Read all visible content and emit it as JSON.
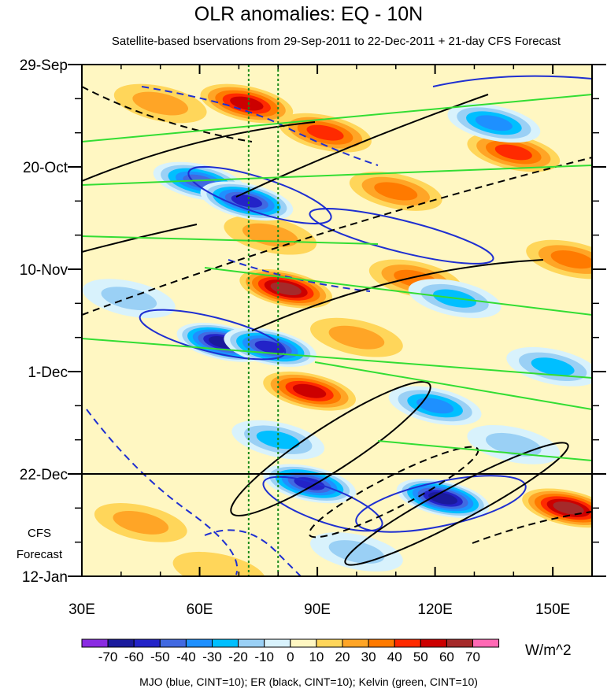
{
  "chart_data": {
    "type": "heatmap",
    "title": "OLR anomalies: EQ - 10N",
    "subtitle": "Satellite-based bservations from 29-Sep-2011 to 22-Dec-2011 + 21-day CFS Forecast",
    "x_axis": {
      "range": [
        30,
        160
      ],
      "ticks": [
        30,
        60,
        90,
        120,
        150
      ],
      "tick_labels": [
        "30E",
        "60E",
        "90E",
        "120E",
        "150E"
      ]
    },
    "y_axis": {
      "range_days": [
        0,
        105
      ],
      "ticks_days": [
        0,
        21,
        42,
        63,
        84,
        105
      ],
      "tick_labels": [
        "29-Sep",
        "20-Oct",
        "10-Nov",
        "1-Dec",
        "22-Dec",
        "12-Jan"
      ],
      "direction": "down"
    },
    "forecast_start_day": 84,
    "forecast_label": [
      "CFS",
      "Forecast"
    ],
    "reference_lons": [
      72.5,
      80
    ],
    "colorbar": {
      "levels": [
        -70,
        -60,
        -50,
        -40,
        -30,
        -20,
        -10,
        0,
        10,
        20,
        30,
        40,
        50,
        60,
        70
      ],
      "labels": [
        "-70",
        "-60",
        "-50",
        "-40",
        "-30",
        "-20",
        "-10",
        "0",
        "10",
        "20",
        "30",
        "40",
        "50",
        "60",
        "70"
      ],
      "colors": [
        "#8a2be2",
        "#1a1a9c",
        "#2323c8",
        "#4169e1",
        "#1e90ff",
        "#00bfff",
        "#9ad0f5",
        "#d8f2fc",
        "#fff7c2",
        "#ffd65a",
        "#ffa526",
        "#ff7a00",
        "#ff2a00",
        "#cc0000",
        "#a52a2a",
        "#ff69b4"
      ],
      "units": "W/m^2"
    },
    "anomalies": [
      {
        "lon": 72,
        "day": 8,
        "value": 55
      },
      {
        "lon": 92,
        "day": 14,
        "value": 40
      },
      {
        "lon": 140,
        "day": 18,
        "value": 40
      },
      {
        "lon": 110,
        "day": 26,
        "value": 30
      },
      {
        "lon": 78,
        "day": 35,
        "value": 20
      },
      {
        "lon": 82,
        "day": 46,
        "value": 60
      },
      {
        "lon": 115,
        "day": 44,
        "value": 30
      },
      {
        "lon": 66,
        "day": 57,
        "value": -70
      },
      {
        "lon": 78,
        "day": 58,
        "value": -60
      },
      {
        "lon": 60,
        "day": 24,
        "value": -50
      },
      {
        "lon": 72,
        "day": 28,
        "value": -60
      },
      {
        "lon": 135,
        "day": 12,
        "value": -40
      },
      {
        "lon": 125,
        "day": 48,
        "value": -30
      },
      {
        "lon": 88,
        "day": 67,
        "value": 50
      },
      {
        "lon": 120,
        "day": 70,
        "value": -40
      },
      {
        "lon": 80,
        "day": 77,
        "value": -30
      },
      {
        "lon": 88,
        "day": 86,
        "value": -60
      },
      {
        "lon": 122,
        "day": 89,
        "value": -70
      },
      {
        "lon": 154,
        "day": 91,
        "value": 60
      },
      {
        "lon": 45,
        "day": 94,
        "value": 20
      },
      {
        "lon": 42,
        "day": 48,
        "value": -20
      },
      {
        "lon": 100,
        "day": 56,
        "value": 20
      },
      {
        "lon": 150,
        "day": 62,
        "value": -30
      },
      {
        "lon": 155,
        "day": 40,
        "value": 30
      },
      {
        "lon": 50,
        "day": 8,
        "value": 20
      },
      {
        "lon": 100,
        "day": 100,
        "value": -20
      },
      {
        "lon": 140,
        "day": 78,
        "value": -20
      },
      {
        "lon": 65,
        "day": 104,
        "value": 10
      }
    ],
    "contour_legend": "MJO (blue, CINT=10); ER (black, CINT=10); Kelvin (green, CINT=10)",
    "contour_colors": {
      "MJO": "#1f2fd1",
      "ER": "#000000",
      "Kelvin": "#33dd33"
    }
  }
}
